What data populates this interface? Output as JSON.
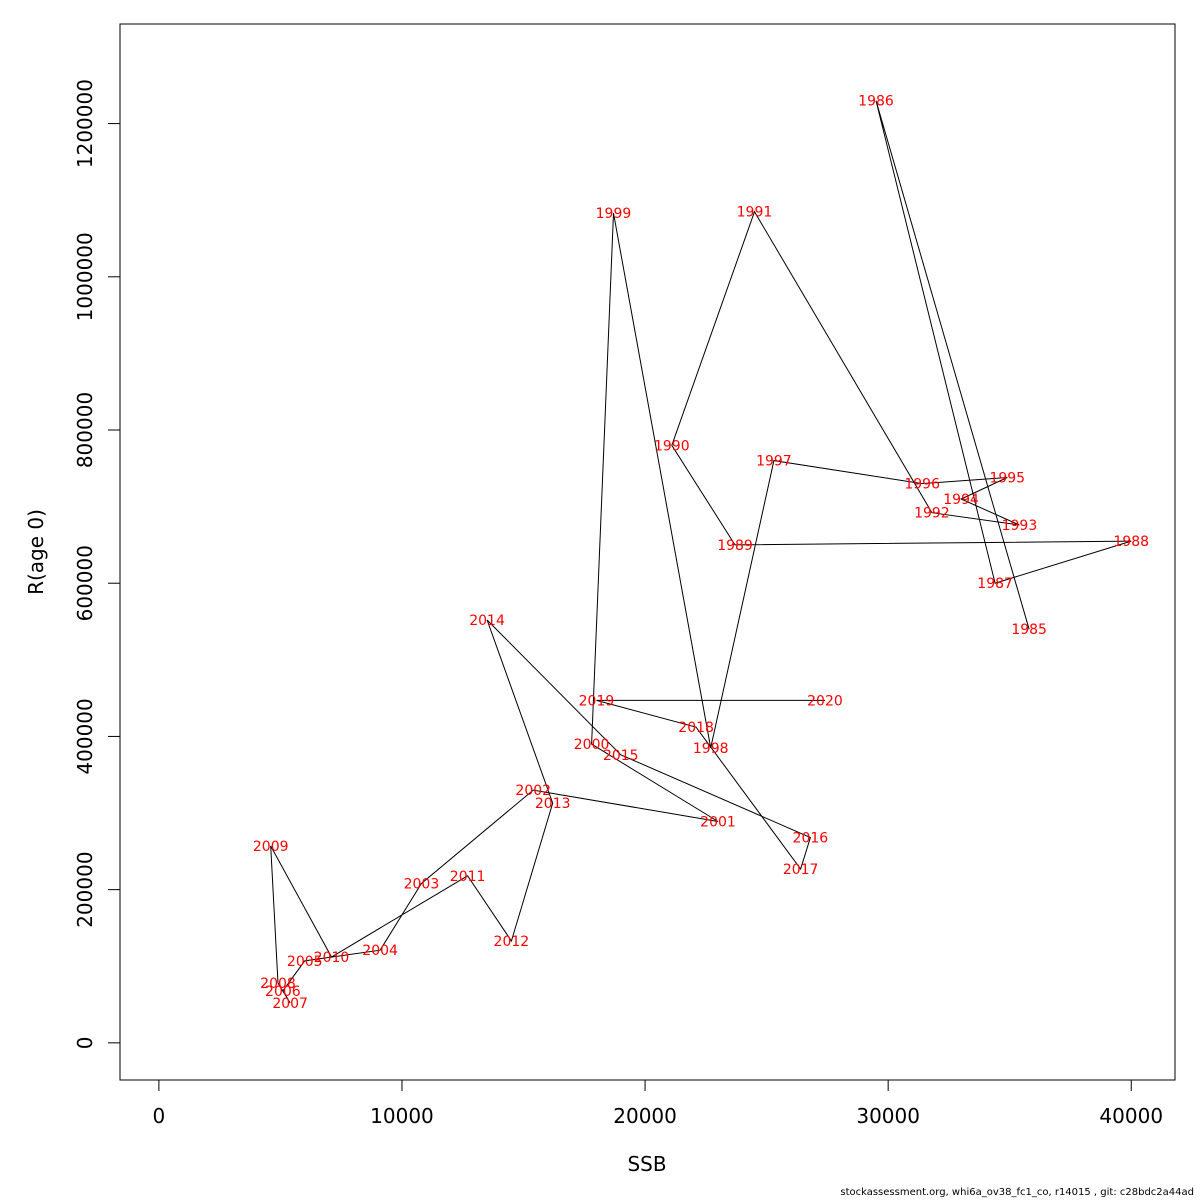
{
  "chart_data": {
    "type": "line",
    "xlabel": "SSB",
    "ylabel": "R(age 0)",
    "xlim": [
      -1600,
      41800
    ],
    "ylim": [
      -48500,
      1330000
    ],
    "x_ticks": [
      0,
      10000,
      20000,
      30000,
      40000
    ],
    "y_ticks": [
      0,
      200000,
      400000,
      600000,
      800000,
      1000000,
      1200000
    ],
    "grid": false,
    "line_color": "#000000",
    "label_color": "#ff0000",
    "points": [
      {
        "year": "1985",
        "x": 35800,
        "y": 540000
      },
      {
        "year": "1986",
        "x": 29500,
        "y": 1230000
      },
      {
        "year": "1987",
        "x": 34400,
        "y": 600000
      },
      {
        "year": "1988",
        "x": 40000,
        "y": 655000
      },
      {
        "year": "1989",
        "x": 23700,
        "y": 650000
      },
      {
        "year": "1990",
        "x": 21100,
        "y": 780000
      },
      {
        "year": "1991",
        "x": 24500,
        "y": 1085000
      },
      {
        "year": "1992",
        "x": 31800,
        "y": 692000
      },
      {
        "year": "1993",
        "x": 35400,
        "y": 676000
      },
      {
        "year": "1994",
        "x": 33000,
        "y": 710000
      },
      {
        "year": "1995",
        "x": 34900,
        "y": 738000
      },
      {
        "year": "1996",
        "x": 31400,
        "y": 730000
      },
      {
        "year": "1997",
        "x": 25300,
        "y": 760000
      },
      {
        "year": "1998",
        "x": 22700,
        "y": 385000
      },
      {
        "year": "1999",
        "x": 18700,
        "y": 1083000
      },
      {
        "year": "2000",
        "x": 17800,
        "y": 390000
      },
      {
        "year": "2001",
        "x": 23000,
        "y": 289000
      },
      {
        "year": "2002",
        "x": 15400,
        "y": 330000
      },
      {
        "year": "2003",
        "x": 10800,
        "y": 208000
      },
      {
        "year": "2004",
        "x": 9100,
        "y": 121000
      },
      {
        "year": "2005",
        "x": 6000,
        "y": 107000
      },
      {
        "year": "2006",
        "x": 5100,
        "y": 68000
      },
      {
        "year": "2007",
        "x": 5400,
        "y": 52000
      },
      {
        "year": "2008",
        "x": 4900,
        "y": 78000
      },
      {
        "year": "2009",
        "x": 4600,
        "y": 257000
      },
      {
        "year": "2010",
        "x": 7100,
        "y": 112000
      },
      {
        "year": "2011",
        "x": 12700,
        "y": 218000
      },
      {
        "year": "2012",
        "x": 14500,
        "y": 133000
      },
      {
        "year": "2013",
        "x": 16200,
        "y": 313000
      },
      {
        "year": "2014",
        "x": 13500,
        "y": 552000
      },
      {
        "year": "2015",
        "x": 19000,
        "y": 376000
      },
      {
        "year": "2016",
        "x": 26800,
        "y": 268000
      },
      {
        "year": "2017",
        "x": 26400,
        "y": 227000
      },
      {
        "year": "2018",
        "x": 22100,
        "y": 412000
      },
      {
        "year": "2019",
        "x": 18000,
        "y": 447000
      },
      {
        "year": "2020",
        "x": 27400,
        "y": 447000
      }
    ]
  },
  "footer": {
    "caption": "stockassessment.org, whi6a_ov38_fc1_co, r14015 , git: c28bdc2a44ad"
  }
}
